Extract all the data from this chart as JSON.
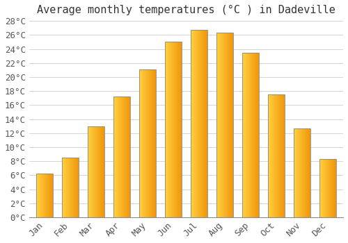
{
  "title": "Average monthly temperatures (°C ) in Dadeville",
  "months": [
    "Jan",
    "Feb",
    "Mar",
    "Apr",
    "May",
    "Jun",
    "Jul",
    "Aug",
    "Sep",
    "Oct",
    "Nov",
    "Dec"
  ],
  "values": [
    6.2,
    8.5,
    13.0,
    17.2,
    21.1,
    25.0,
    26.7,
    26.3,
    23.5,
    17.5,
    12.7,
    8.3
  ],
  "bar_color_light": "#FFD040",
  "bar_color_dark": "#F5A800",
  "bar_edge_color": "#888888",
  "background_color": "#FFFFFF",
  "grid_color": "#CCCCCC",
  "ylim": [
    0,
    28
  ],
  "ytick_step": 2,
  "title_fontsize": 11,
  "tick_fontsize": 9,
  "font_family": "monospace",
  "bar_width": 0.65
}
